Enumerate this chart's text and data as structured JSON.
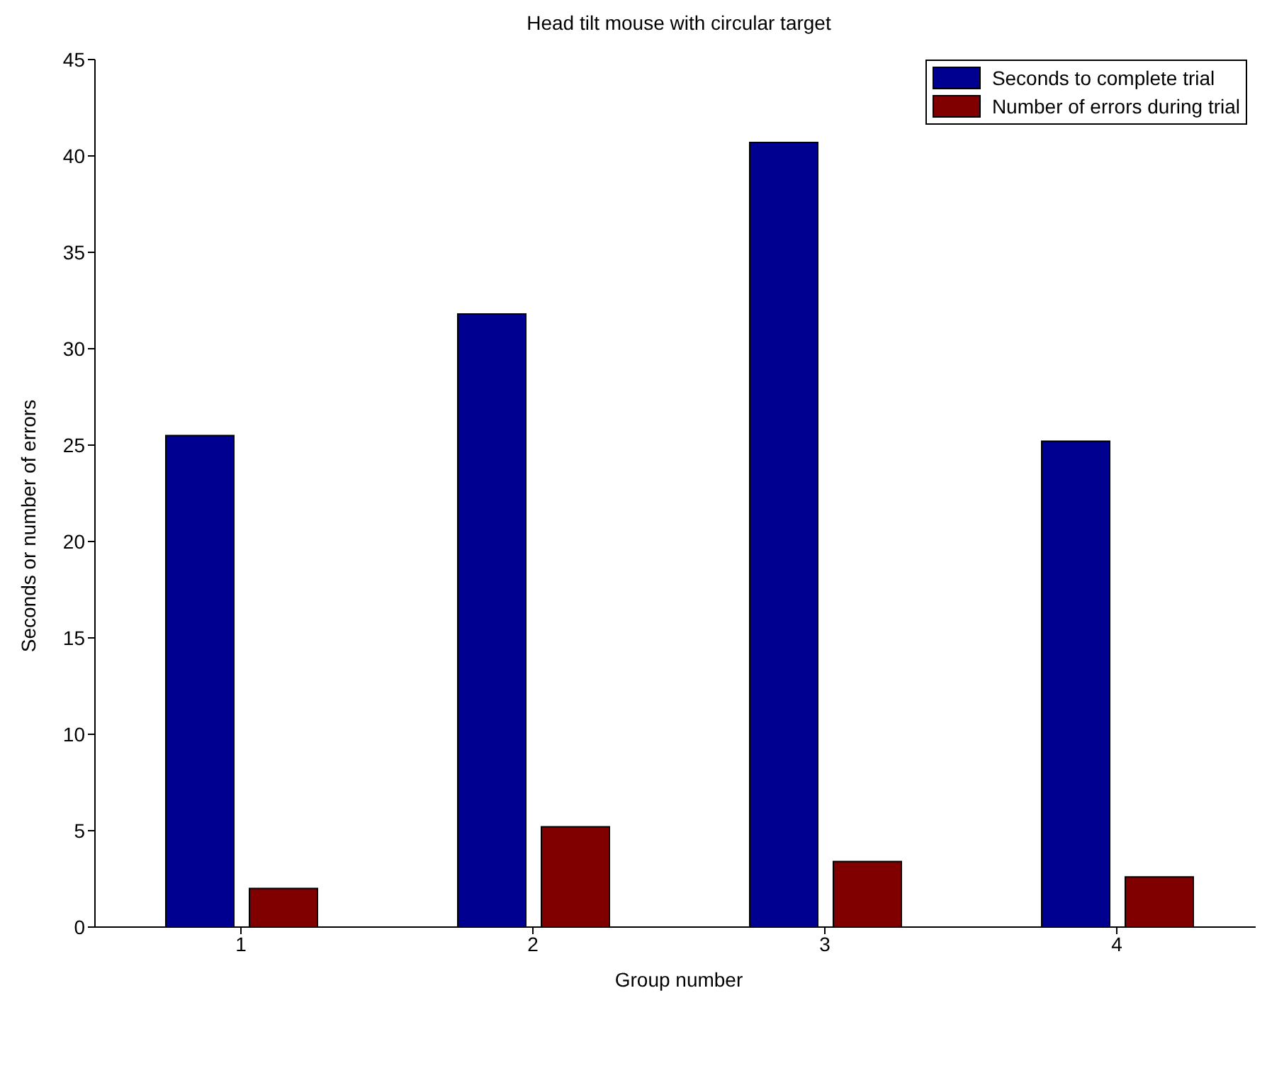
{
  "chart_data": {
    "type": "bar",
    "title": "Head tilt mouse with circular target",
    "xlabel": "Group number",
    "ylabel": "Seconds or number of errors",
    "categories": [
      "1",
      "2",
      "3",
      "4"
    ],
    "series": [
      {
        "name": "Seconds to complete trial",
        "color": "#000090",
        "values": [
          25.5,
          31.8,
          40.7,
          25.2
        ]
      },
      {
        "name": "Number of errors during trial",
        "color": "#800000",
        "values": [
          2.0,
          5.2,
          3.4,
          2.6
        ]
      }
    ],
    "ylim": [
      0,
      45
    ],
    "yticks": [
      0,
      5,
      10,
      15,
      20,
      25,
      30,
      35,
      40,
      45
    ],
    "grid": false,
    "legend": "top right"
  }
}
